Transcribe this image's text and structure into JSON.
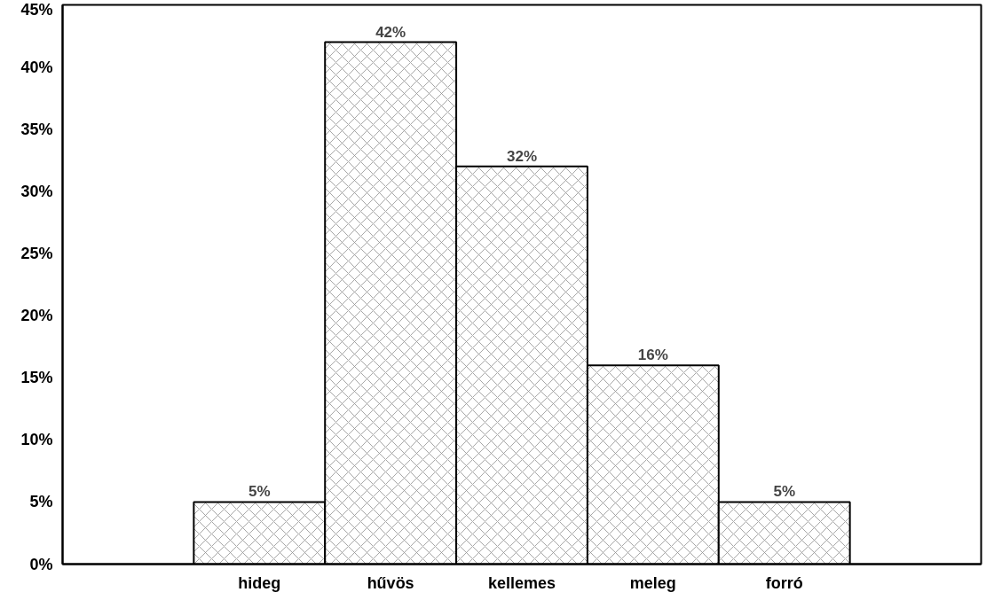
{
  "chart_data": {
    "type": "bar",
    "categories": [
      null,
      "hideg",
      "hűvös",
      "kellemes",
      "meleg",
      "forró",
      null
    ],
    "values": [
      null,
      5,
      42,
      32,
      16,
      5,
      null
    ],
    "color": "#ffffff",
    "value_labels": [
      null,
      "5%",
      "42%",
      "32%",
      "16%",
      "5%",
      null
    ],
    "ylim": [
      0,
      45
    ],
    "yticks": [
      {
        "value": 0,
        "label": "0%"
      },
      {
        "value": 5,
        "label": "5%"
      },
      {
        "value": 10,
        "label": "10%"
      },
      {
        "value": 15,
        "label": "15%"
      },
      {
        "value": 20,
        "label": "20%"
      },
      {
        "value": 25,
        "label": "25%"
      },
      {
        "value": 30,
        "label": "30%"
      },
      {
        "value": 35,
        "label": "35%"
      },
      {
        "value": 40,
        "label": "40%"
      },
      {
        "value": 45,
        "label": "45%"
      }
    ],
    "grid": false
  }
}
